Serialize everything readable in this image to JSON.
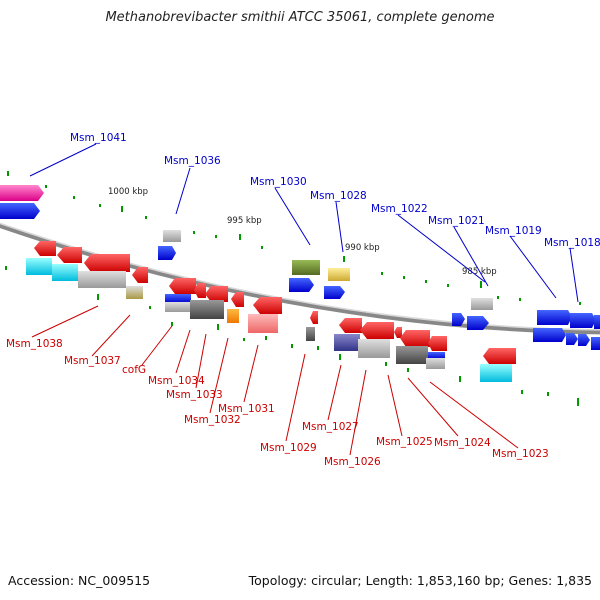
{
  "title": "Methanobrevibacter smithii ATCC 35061, complete genome",
  "accession": "Accession: NC_009515",
  "topology": "Topology: circular; Length: 1,853,160 bp; Genes: 1,835",
  "scale_labels": [
    "1000 kbp",
    "995 kbp",
    "990 kbp",
    "985 kbp"
  ],
  "upper_labels": [
    "Msm_1041",
    "Msm_1036",
    "Msm_1030",
    "Msm_1028",
    "Msm_1022",
    "Msm_1021",
    "Msm_1019",
    "Msm_1018"
  ],
  "lower_labels": [
    "Msm_1038",
    "Msm_1037",
    "cofG",
    "Msm_1034",
    "Msm_1033",
    "Msm_1032",
    "Msm_1031",
    "Msm_1029",
    "Msm_1027",
    "Msm_1026",
    "Msm_1025",
    "Msm_1024",
    "Msm_1023"
  ],
  "colors": {
    "upper_label": "#0000cc",
    "lower_label": "#cc0000",
    "backbone": "#999999",
    "tick": "#009900"
  }
}
